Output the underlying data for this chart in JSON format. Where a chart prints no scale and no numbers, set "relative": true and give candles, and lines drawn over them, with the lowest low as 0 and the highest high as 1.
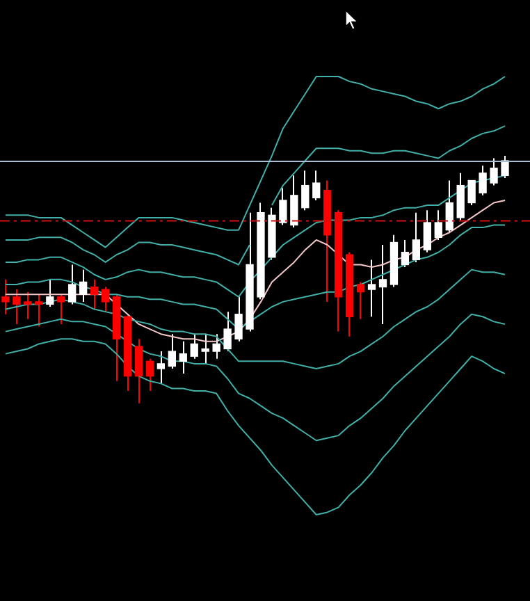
{
  "chart_data": {
    "type": "candlestick",
    "relative": true,
    "tick_labels": false,
    "grid": false,
    "legend": false,
    "categories": [
      null,
      null,
      null,
      null,
      null,
      null,
      null,
      null,
      null,
      null,
      null,
      null,
      null,
      null,
      null,
      null,
      null,
      null,
      null,
      null,
      null,
      null,
      null,
      null,
      null,
      null,
      null,
      null,
      null,
      null,
      null,
      null,
      null,
      null,
      null,
      null,
      null,
      null,
      null,
      null,
      null,
      null,
      null,
      null,
      null,
      null
    ],
    "ohlc": [
      [
        0.43,
        0.5,
        0.36,
        0.41
      ],
      [
        0.43,
        0.46,
        0.32,
        0.4
      ],
      [
        0.41,
        0.45,
        0.34,
        0.4
      ],
      [
        0.41,
        0.44,
        0.31,
        0.4
      ],
      [
        0.4,
        0.5,
        0.39,
        0.43
      ],
      [
        0.43,
        0.44,
        0.32,
        0.41
      ],
      [
        0.41,
        0.56,
        0.4,
        0.48
      ],
      [
        0.44,
        0.54,
        0.41,
        0.49
      ],
      [
        0.47,
        0.5,
        0.38,
        0.44
      ],
      [
        0.46,
        0.47,
        0.37,
        0.41
      ],
      [
        0.43,
        0.44,
        0.09,
        0.26
      ],
      [
        0.35,
        0.36,
        0.05,
        0.11
      ],
      [
        0.23,
        0.26,
        0,
        0.11
      ],
      [
        0.17,
        0.18,
        0.05,
        0.11
      ],
      [
        0.14,
        0.21,
        0.08,
        0.16
      ],
      [
        0.15,
        0.28,
        0.14,
        0.21
      ],
      [
        0.17,
        0.25,
        0.12,
        0.2
      ],
      [
        0.19,
        0.28,
        0.18,
        0.24
      ],
      [
        0.21,
        0.28,
        0.16,
        0.22
      ],
      [
        0.21,
        0.28,
        0.18,
        0.24
      ],
      [
        0.22,
        0.37,
        0.21,
        0.3
      ],
      [
        0.26,
        0.43,
        0.25,
        0.36
      ],
      [
        0.3,
        0.77,
        0.29,
        0.56
      ],
      [
        0.43,
        0.81,
        0.42,
        0.77
      ],
      [
        0.59,
        0.79,
        0.58,
        0.76
      ],
      [
        0.73,
        0.87,
        0.72,
        0.82
      ],
      [
        0.72,
        0.92,
        0.71,
        0.84
      ],
      [
        0.79,
        0.94,
        0.78,
        0.88
      ],
      [
        0.83,
        0.94,
        0.82,
        0.89
      ],
      [
        0.86,
        0.9,
        0.41,
        0.68
      ],
      [
        0.77,
        0.78,
        0.29,
        0.43
      ],
      [
        0.6,
        0.61,
        0.27,
        0.35
      ],
      [
        0.48,
        0.49,
        0.34,
        0.45
      ],
      [
        0.46,
        0.58,
        0.35,
        0.48
      ],
      [
        0.47,
        0.64,
        0.32,
        0.5
      ],
      [
        0.48,
        0.68,
        0.47,
        0.65
      ],
      [
        0.56,
        0.66,
        0.55,
        0.61
      ],
      [
        0.58,
        0.77,
        0.57,
        0.66
      ],
      [
        0.62,
        0.78,
        0.61,
        0.73
      ],
      [
        0.67,
        0.78,
        0.66,
        0.73
      ],
      [
        0.7,
        0.9,
        0.69,
        0.81
      ],
      [
        0.75,
        0.93,
        0.74,
        0.88
      ],
      [
        0.81,
        0.9,
        0.8,
        0.9
      ],
      [
        0.85,
        0.96,
        0.84,
        0.93
      ],
      [
        0.89,
        0.99,
        0.88,
        0.95
      ],
      [
        0.92,
        1,
        0.91,
        0.98
      ]
    ],
    "colors": [
      "#ff0000",
      "#ff0000",
      "#ff0000",
      "#ff0000",
      "#ffffff",
      "#ff0000",
      "#ffffff",
      "#ffffff",
      "#ff0000",
      "#ff0000",
      "#ff0000",
      "#ff0000",
      "#ff0000",
      "#ff0000",
      "#ffffff",
      "#ffffff",
      "#ffffff",
      "#ffffff",
      "#ffffff",
      "#ffffff",
      "#ffffff",
      "#ffffff",
      "#ffffff",
      "#ffffff",
      "#ffffff",
      "#ffffff",
      "#ffffff",
      "#ffffff",
      "#ffffff",
      "#ff0000",
      "#ff0000",
      "#ff0000",
      "#ff0000",
      "#ffffff",
      "#ffffff",
      "#ffffff",
      "#ffffff",
      "#ffffff",
      "#ffffff",
      "#ffffff",
      "#ffffff",
      "#ffffff",
      "#ffffff",
      "#ffffff",
      "#ffffff",
      "#ffffff"
    ],
    "series": [
      {
        "type": "line",
        "color": "#40b0a8",
        "values": [
          0.76,
          0.76,
          0.76,
          0.75,
          0.75,
          0.75,
          0.72,
          0.69,
          0.66,
          0.63,
          0.67,
          0.71,
          0.75,
          0.75,
          0.75,
          0.75,
          0.74,
          0.73,
          0.72,
          0.71,
          0.7,
          0.7,
          0.8,
          0.9,
          1,
          1.11,
          1.18,
          1.25,
          1.32,
          1.32,
          1.32,
          1.3,
          1.29,
          1.27,
          1.26,
          1.25,
          1.24,
          1.22,
          1.21,
          1.19,
          1.21,
          1.22,
          1.24,
          1.27,
          1.29,
          1.32
        ]
      },
      {
        "type": "line",
        "color": "#40b0a8",
        "values": [
          0.66,
          0.66,
          0.66,
          0.67,
          0.67,
          0.67,
          0.65,
          0.62,
          0.6,
          0.57,
          0.6,
          0.62,
          0.65,
          0.65,
          0.64,
          0.64,
          0.63,
          0.62,
          0.61,
          0.6,
          0.58,
          0.56,
          0.64,
          null,
          0.8,
          0.88,
          0.93,
          0.98,
          1.03,
          1.03,
          1.03,
          1.02,
          1.02,
          1.01,
          1.01,
          1.02,
          1.02,
          1.01,
          1,
          0.99,
          1.02,
          1.04,
          1.07,
          1.09,
          1.1,
          1.12
        ]
      },
      {
        "type": "line",
        "color": "#40b0a8",
        "values": [
          0.57,
          0.57,
          0.58,
          0.58,
          0.59,
          0.59,
          0.57,
          0.55,
          0.52,
          0.5,
          0.51,
          0.53,
          0.54,
          0.53,
          0.53,
          0.52,
          0.51,
          0.51,
          0.5,
          0.49,
          0.46,
          0.43,
          0.49,
          0.54,
          0.59,
          0.64,
          0.67,
          0.7,
          0.73,
          0.74,
          0.74,
          0.74,
          0.75,
          0.75,
          0.76,
          0.78,
          0.79,
          0.79,
          0.8,
          0.8,
          0.83,
          0.86,
          0.89,
          0.9,
          0.91,
          0.92
        ]
      },
      {
        "type": "line",
        "color": "#40b0a8",
        "values": [
          0.48,
          0.48,
          0.49,
          0.49,
          0.5,
          0.5,
          0.49,
          0.47,
          0.46,
          0.44,
          0.44,
          0.43,
          0.43,
          0.42,
          0.42,
          0.41,
          0.4,
          0.4,
          0.39,
          0.38,
          0.34,
          0.3,
          0.33,
          0.36,
          0.39,
          0.41,
          0.42,
          0.43,
          0.44,
          0.45,
          0.45,
          0.47,
          0.48,
          0.5,
          0.52,
          0.54,
          0.56,
          0.58,
          0.59,
          0.61,
          0.64,
          0.68,
          0.71,
          0.71,
          0.72,
          0.72
        ]
      },
      {
        "type": "line",
        "color": "#40b0a8",
        "values": [
          0.38,
          0.39,
          0.4,
          0.4,
          0.41,
          0.42,
          0.41,
          0.4,
          0.38,
          0.37,
          0.36,
          0.34,
          0.33,
          0.32,
          0.3,
          0.29,
          0.29,
          0.28,
          0.28,
          0.27,
          0.22,
          0.17,
          0.17,
          0.17,
          0.17,
          0.17,
          0.16,
          0.15,
          0.14,
          0.15,
          0.16,
          0.19,
          0.21,
          0.24,
          0.27,
          0.31,
          0.34,
          0.37,
          0.39,
          0.42,
          0.46,
          0.5,
          0.54,
          0.53,
          0.53,
          0.52
        ]
      },
      {
        "type": "line",
        "color": "#40b0a8",
        "values": [
          0.29,
          0.3,
          0.31,
          0.32,
          0.33,
          0.34,
          0.33,
          0.33,
          0.32,
          0.31,
          0.28,
          0.25,
          0.22,
          0.2,
          0.19,
          0.17,
          0.17,
          0.16,
          0.16,
          0.15,
          0.1,
          0.04,
          0.02,
          -0.01,
          -0.04,
          -0.06,
          -0.09,
          -0.12,
          -0.15,
          -0.14,
          -0.13,
          -0.09,
          -0.06,
          -0.02,
          0.02,
          0.07,
          0.11,
          0.15,
          0.19,
          0.23,
          0.27,
          0.32,
          0.36,
          0.35,
          0.33,
          0.32
        ]
      },
      {
        "type": "line",
        "color": "#40b0a8",
        "values": [
          0.2,
          0.21,
          0.22,
          0.24,
          0.25,
          0.26,
          0.26,
          0.25,
          0.25,
          0.24,
          0.2,
          0.15,
          0.11,
          0.09,
          0.08,
          0.06,
          0.06,
          0.05,
          0.05,
          0.04,
          -0.03,
          -0.09,
          -0.14,
          -0.19,
          -0.25,
          -0.3,
          -0.35,
          -0.4,
          -0.45,
          -0.44,
          -0.42,
          -0.37,
          -0.33,
          -0.28,
          -0.22,
          -0.17,
          -0.11,
          -0.06,
          -0.01,
          0.04,
          0.09,
          0.14,
          0.19,
          0.17,
          0.14,
          0.12
        ]
      },
      {
        "type": "line",
        "color": "#f4c8c8",
        "values": [
          0.44,
          0.44,
          0.44,
          0.44,
          0.44,
          0.44,
          0.44,
          0.44,
          0.44,
          0.44,
          0.4,
          0.36,
          0.32,
          0.3,
          0.28,
          0.27,
          0.26,
          0.26,
          0.25,
          0.25,
          0.27,
          0.29,
          0.34,
          0.41,
          0.49,
          0.53,
          0.57,
          0.62,
          0.66,
          0.64,
          0.6,
          0.56,
          0.56,
          0.55,
          0.56,
          0.58,
          0.59,
          0.62,
          0.64,
          0.67,
          0.69,
          0.72,
          0.75,
          0.78,
          0.81,
          0.82
        ]
      }
    ],
    "ref_lines": [
      {
        "axis": "y",
        "value": 0.98,
        "color": "#a8c0d4",
        "line_style": "solid"
      },
      {
        "axis": "y",
        "value": 0.74,
        "color": "#d01010",
        "line_style": "dashed"
      }
    ]
  }
}
